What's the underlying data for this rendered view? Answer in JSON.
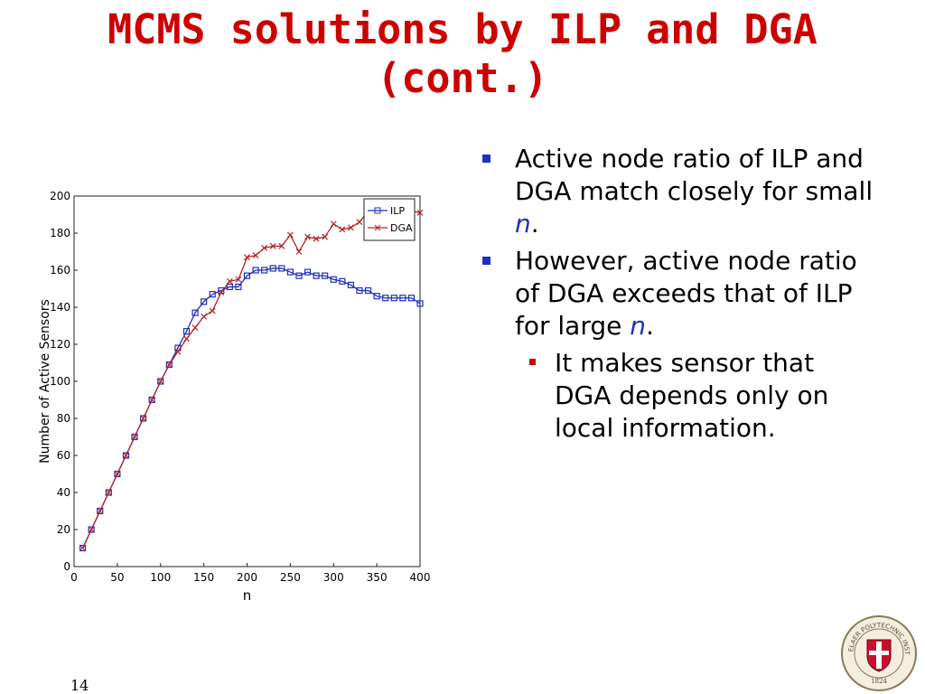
{
  "slide": {
    "title_line1": "MCMS solutions by ILP and DGA",
    "title_line2": "(cont.)",
    "page_number": "14"
  },
  "bullets": [
    {
      "level": 1,
      "parts": [
        {
          "text": "Active node ratio of ILP and DGA match closely for small "
        },
        {
          "text": "n",
          "var": true
        },
        {
          "text": "."
        }
      ]
    },
    {
      "level": 1,
      "parts": [
        {
          "text": "However, active node ratio of DGA exceeds that of ILP for large "
        },
        {
          "text": "n",
          "var": true
        },
        {
          "text": "."
        }
      ]
    },
    {
      "level": 2,
      "parts": [
        {
          "text": "It makes sensor that DGA depends only on local information."
        }
      ]
    }
  ],
  "logo": {
    "text_top": "RENSSELAER POLYTECHNIC INSTITUTE",
    "year": "1824"
  },
  "chart_data": {
    "type": "line",
    "title": "",
    "xlabel": "n",
    "ylabel": "Number of Active Sensors",
    "xlim": [
      0,
      400
    ],
    "ylim": [
      0,
      200
    ],
    "xticks": [
      0,
      50,
      100,
      150,
      200,
      250,
      300,
      350,
      400
    ],
    "yticks": [
      0,
      20,
      40,
      60,
      80,
      100,
      120,
      140,
      160,
      180,
      200
    ],
    "legend_position": "top-right",
    "series": [
      {
        "name": "ILP",
        "color": "#1f2fbf",
        "marker": "square",
        "x": [
          10,
          20,
          30,
          40,
          50,
          60,
          70,
          80,
          90,
          100,
          110,
          120,
          130,
          140,
          150,
          160,
          170,
          180,
          190,
          200,
          210,
          220,
          230,
          240,
          250,
          260,
          270,
          280,
          290,
          300,
          310,
          320,
          330,
          340,
          350,
          360,
          370,
          380,
          390,
          400
        ],
        "values": [
          10,
          20,
          30,
          40,
          50,
          60,
          70,
          80,
          90,
          100,
          109,
          118,
          127,
          137,
          143,
          147,
          149,
          151,
          151,
          157,
          160,
          160,
          161,
          161,
          159,
          157,
          159,
          157,
          157,
          155,
          154,
          152,
          149,
          149,
          146,
          145,
          145,
          145,
          145,
          142
        ]
      },
      {
        "name": "DGA",
        "color": "#b22222",
        "marker": "x",
        "x": [
          10,
          20,
          30,
          40,
          50,
          60,
          70,
          80,
          90,
          100,
          110,
          120,
          130,
          140,
          150,
          160,
          170,
          180,
          190,
          200,
          210,
          220,
          230,
          240,
          250,
          260,
          270,
          280,
          290,
          300,
          310,
          320,
          330,
          340,
          350,
          360,
          370,
          380,
          390,
          400
        ],
        "values": [
          10,
          20,
          30,
          40,
          50,
          60,
          70,
          80,
          90,
          100,
          109,
          116,
          123,
          129,
          135,
          138,
          148,
          154,
          155,
          167,
          168,
          172,
          173,
          173,
          179,
          170,
          178,
          177,
          178,
          185,
          182,
          183,
          186,
          192,
          193,
          195,
          194,
          193,
          192,
          191
        ]
      }
    ]
  }
}
